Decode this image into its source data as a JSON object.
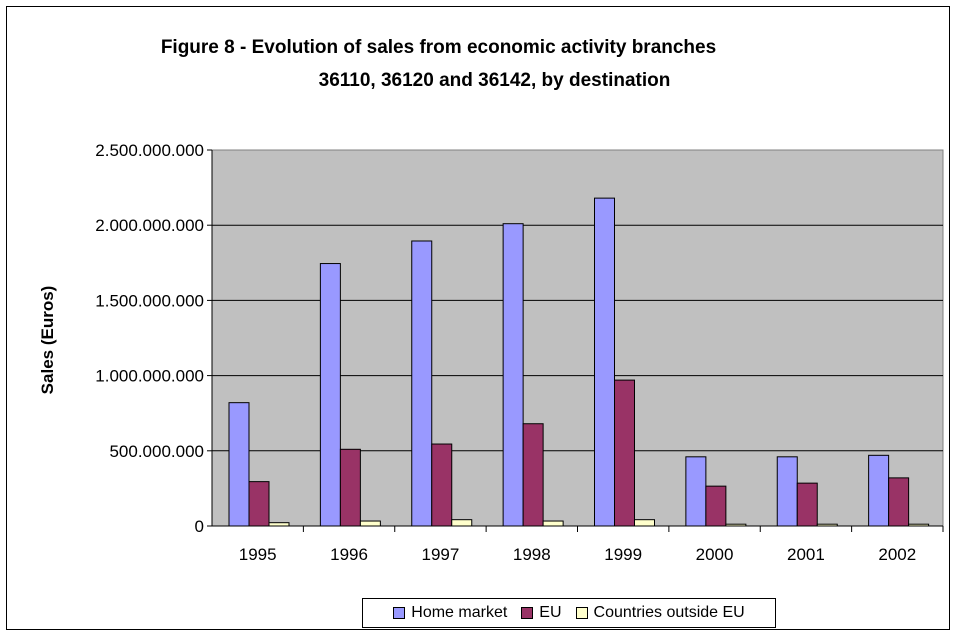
{
  "chart_data": {
    "type": "bar",
    "title": "Figure 8 - Evolution of sales from economic activity branches",
    "subtitle": "36110, 36120 and 36142, by destination",
    "xlabel": "",
    "ylabel": "Sales (Euros)",
    "ylim": [
      0,
      2500000000
    ],
    "yticks": [
      0,
      500000000,
      1000000000,
      1500000000,
      2000000000,
      2500000000
    ],
    "ytick_labels": [
      "0",
      "500.000.000",
      "1.000.000.000",
      "1.500.000.000",
      "2.000.000.000",
      "2.500.000.000"
    ],
    "categories": [
      "1995",
      "1996",
      "1997",
      "1998",
      "1999",
      "2000",
      "2001",
      "2002"
    ],
    "grid": true,
    "legend_position": "bottom",
    "series": [
      {
        "name": "Home market",
        "color": "#9999ff",
        "values": [
          820000000,
          1745000000,
          1895000000,
          2010000000,
          2180000000,
          460000000,
          460000000,
          470000000
        ]
      },
      {
        "name": "EU",
        "color": "#993366",
        "values": [
          295000000,
          510000000,
          545000000,
          680000000,
          970000000,
          265000000,
          285000000,
          320000000
        ]
      },
      {
        "name": "Countries outside EU",
        "color": "#ffffcc",
        "values": [
          22000000,
          33000000,
          42000000,
          33000000,
          42000000,
          12000000,
          12000000,
          12000000
        ]
      }
    ]
  }
}
